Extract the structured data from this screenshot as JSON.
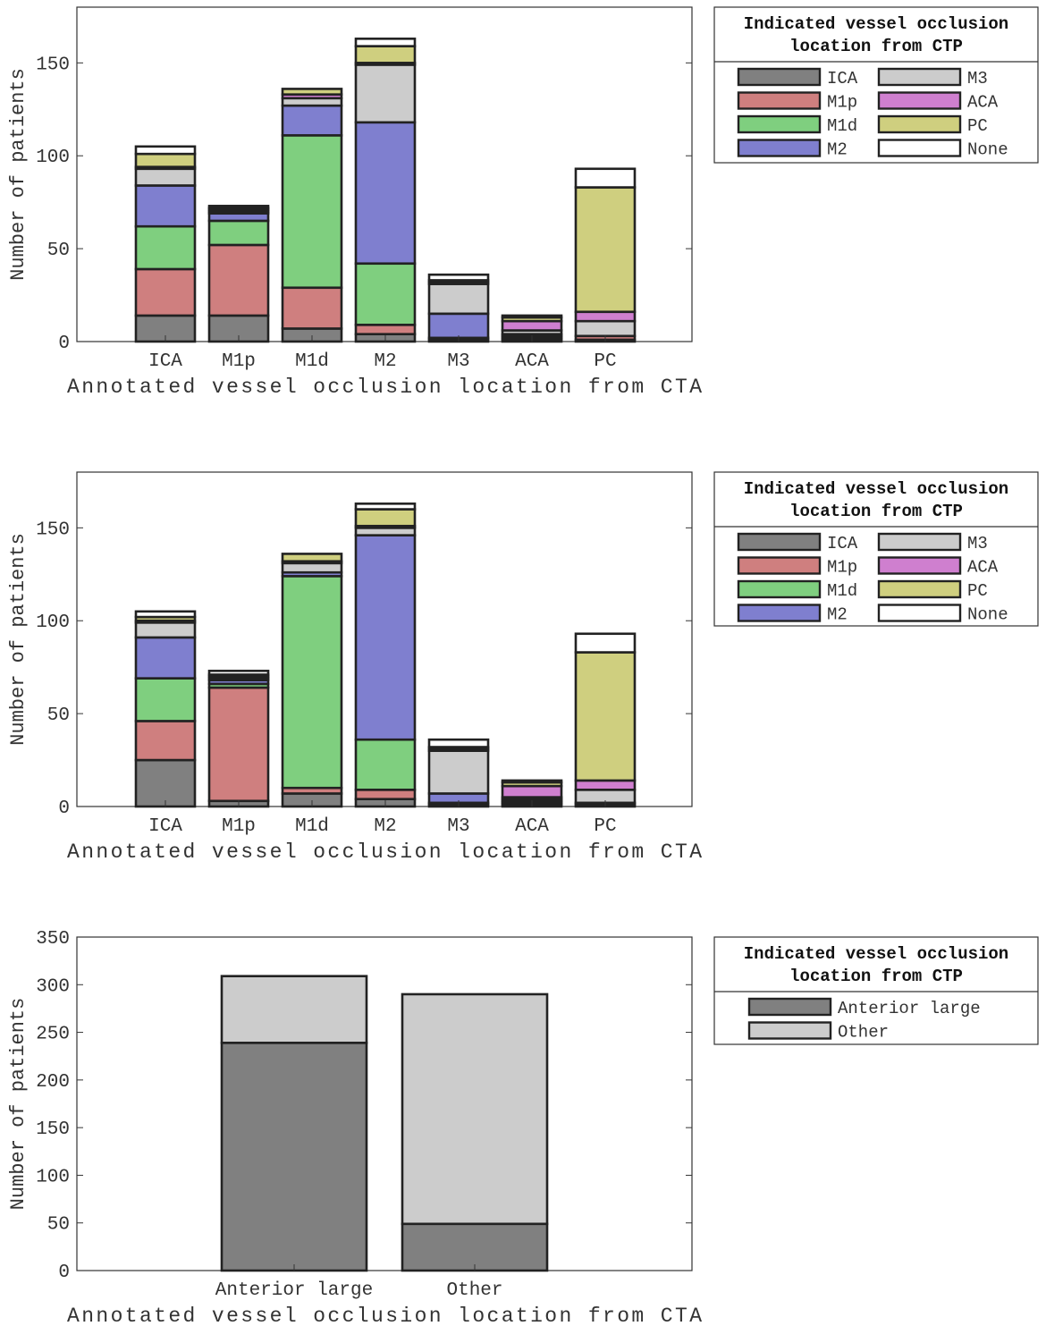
{
  "colors": {
    "ICA": "#808080",
    "M1p": "#cf7f7f",
    "M1d": "#7fcf7f",
    "M2": "#7f7fcf",
    "M3": "#cccccc",
    "ACA": "#cf7fcf",
    "PC": "#cfcf7f",
    "None": "#ffffff",
    "Anterior large": "#808080",
    "Other": "#cccccc"
  },
  "chart_data": [
    {
      "type": "bar",
      "stacked": true,
      "title": "",
      "xlabel": "Annotated vessel occlusion location from CTA",
      "ylabel": "Number of patients",
      "ylim": [
        0,
        180
      ],
      "yticks": [
        0,
        50,
        100,
        150
      ],
      "categories": [
        "ICA",
        "M1p",
        "M1d",
        "M2",
        "M3",
        "ACA",
        "PC"
      ],
      "legend_title": [
        "Indicated vessel occlusion",
        "location from CTP"
      ],
      "legend_position": "right",
      "legend_columns": [
        [
          "ICA",
          "M1p",
          "M1d",
          "M2"
        ],
        [
          "M3",
          "ACA",
          "PC",
          "None"
        ]
      ],
      "series": [
        {
          "name": "ICA",
          "values": [
            14,
            14,
            7,
            4,
            1,
            1,
            1
          ]
        },
        {
          "name": "M1p",
          "values": [
            25,
            38,
            22,
            5,
            0,
            1,
            2
          ]
        },
        {
          "name": "M1d",
          "values": [
            23,
            13,
            82,
            33,
            1,
            1,
            0
          ]
        },
        {
          "name": "M2",
          "values": [
            22,
            4,
            16,
            76,
            13,
            1,
            0
          ]
        },
        {
          "name": "M3",
          "values": [
            9,
            1,
            4,
            31,
            16,
            2,
            8
          ]
        },
        {
          "name": "ACA",
          "values": [
            1,
            1,
            2,
            1,
            1,
            5,
            5
          ]
        },
        {
          "name": "PC",
          "values": [
            7,
            1,
            3,
            9,
            1,
            2,
            67
          ]
        },
        {
          "name": "None",
          "values": [
            4,
            1,
            0,
            4,
            3,
            1,
            10
          ]
        }
      ]
    },
    {
      "type": "bar",
      "stacked": true,
      "title": "",
      "xlabel": "Annotated vessel occlusion location from CTA",
      "ylabel": "Number of patients",
      "ylim": [
        0,
        180
      ],
      "yticks": [
        0,
        50,
        100,
        150
      ],
      "categories": [
        "ICA",
        "M1p",
        "M1d",
        "M2",
        "M3",
        "ACA",
        "PC"
      ],
      "legend_title": [
        "Indicated vessel occlusion",
        "location from CTP"
      ],
      "legend_position": "right",
      "legend_columns": [
        [
          "ICA",
          "M1p",
          "M1d",
          "M2"
        ],
        [
          "M3",
          "ACA",
          "PC",
          "None"
        ]
      ],
      "series": [
        {
          "name": "ICA",
          "values": [
            25,
            3,
            7,
            4,
            1,
            1,
            1
          ]
        },
        {
          "name": "M1p",
          "values": [
            21,
            61,
            3,
            5,
            0,
            1,
            1
          ]
        },
        {
          "name": "M1d",
          "values": [
            23,
            2,
            114,
            27,
            1,
            1,
            0
          ]
        },
        {
          "name": "M2",
          "values": [
            22,
            2,
            2,
            110,
            5,
            1,
            0
          ]
        },
        {
          "name": "M3",
          "values": [
            8,
            1,
            5,
            4,
            23,
            1,
            7
          ]
        },
        {
          "name": "ACA",
          "values": [
            1,
            1,
            1,
            1,
            1,
            6,
            5
          ]
        },
        {
          "name": "PC",
          "values": [
            2,
            1,
            4,
            9,
            1,
            2,
            69
          ]
        },
        {
          "name": "None",
          "values": [
            3,
            2,
            0,
            3,
            4,
            1,
            10
          ]
        }
      ]
    },
    {
      "type": "bar",
      "stacked": true,
      "title": "",
      "xlabel": "Annotated vessel occlusion location from CTA",
      "ylabel": "Number of patients",
      "ylim": [
        0,
        350
      ],
      "yticks": [
        0,
        50,
        100,
        150,
        200,
        250,
        300,
        350
      ],
      "categories": [
        "Anterior large",
        "Other"
      ],
      "legend_title": [
        "Indicated vessel occlusion",
        "location from CTP"
      ],
      "legend_position": "right",
      "legend_columns": [
        [
          "Anterior large",
          "Other"
        ]
      ],
      "series": [
        {
          "name": "Anterior large",
          "values": [
            239,
            49
          ]
        },
        {
          "name": "Other",
          "values": [
            70,
            241
          ]
        }
      ]
    }
  ]
}
